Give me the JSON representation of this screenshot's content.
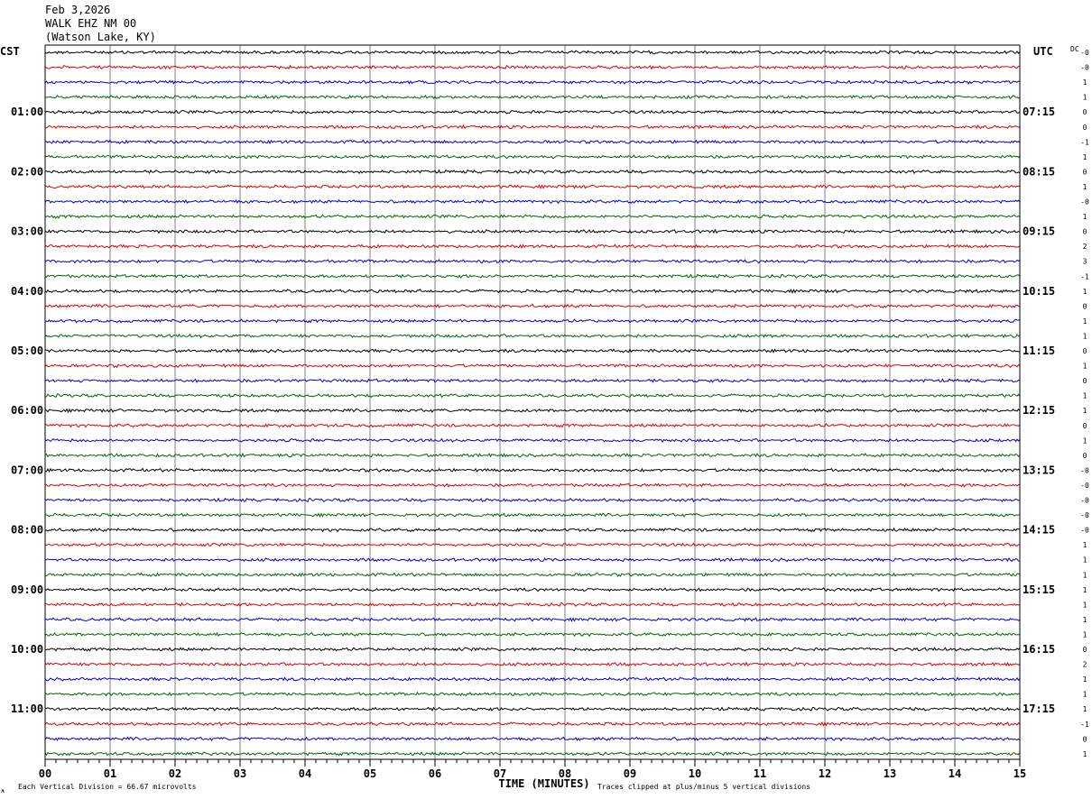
{
  "header": {
    "date": "Feb 3,2026",
    "station": "WALK EHZ NM 00",
    "location": "(Watson Lake, KY)"
  },
  "left_axis_title": "CST",
  "right_axis_title": "UTC",
  "dc_label": "DC",
  "footer": {
    "scale_text": "Each Vertical Division =   66.67 microvolts",
    "xlabel": "TIME (MINUTES)",
    "clip_text": "Traces clipped at plus/minus 5 vertical divisions",
    "corner_mark": "ᴀ"
  },
  "colors": {
    "trace_cycle": [
      "#000000",
      "#dd0000",
      "#0000cc",
      "#006600"
    ],
    "grid": "#808080",
    "background": "#ffffff"
  },
  "chart_data": {
    "type": "line",
    "subtype": "helicorder",
    "x": {
      "label": "TIME (MINUTES)",
      "range": [
        0,
        15
      ],
      "tick_labels": [
        "00",
        "01",
        "02",
        "03",
        "04",
        "05",
        "06",
        "07",
        "08",
        "09",
        "10",
        "11",
        "12",
        "13",
        "14",
        "15"
      ]
    },
    "left_hour_labels": [
      "01:00",
      "02:00",
      "03:00",
      "04:00",
      "05:00",
      "06:00",
      "07:00",
      "08:00",
      "09:00",
      "10:00",
      "11:00"
    ],
    "right_hour_labels": [
      "07:15",
      "08:15",
      "09:15",
      "10:15",
      "11:15",
      "12:15",
      "13:15",
      "14:15",
      "15:15",
      "16:15",
      "17:15"
    ],
    "trace_count": 48,
    "dc_offsets": [
      "-0",
      "-0",
      "1",
      "1",
      "0",
      "0",
      "-1",
      "1",
      "0",
      "1",
      "-0",
      "1",
      "0",
      "2",
      "3",
      "-1",
      "1",
      "0",
      "1",
      "1",
      "0",
      "1",
      "0",
      "1",
      "1",
      "0",
      "1",
      "0",
      "-0",
      "-0",
      "-0",
      "-0",
      "-0",
      "1",
      "1",
      "1",
      "1",
      "1",
      "1",
      "1",
      "0",
      "2",
      "1",
      "1",
      "1",
      "-1",
      "0",
      "1"
    ]
  }
}
